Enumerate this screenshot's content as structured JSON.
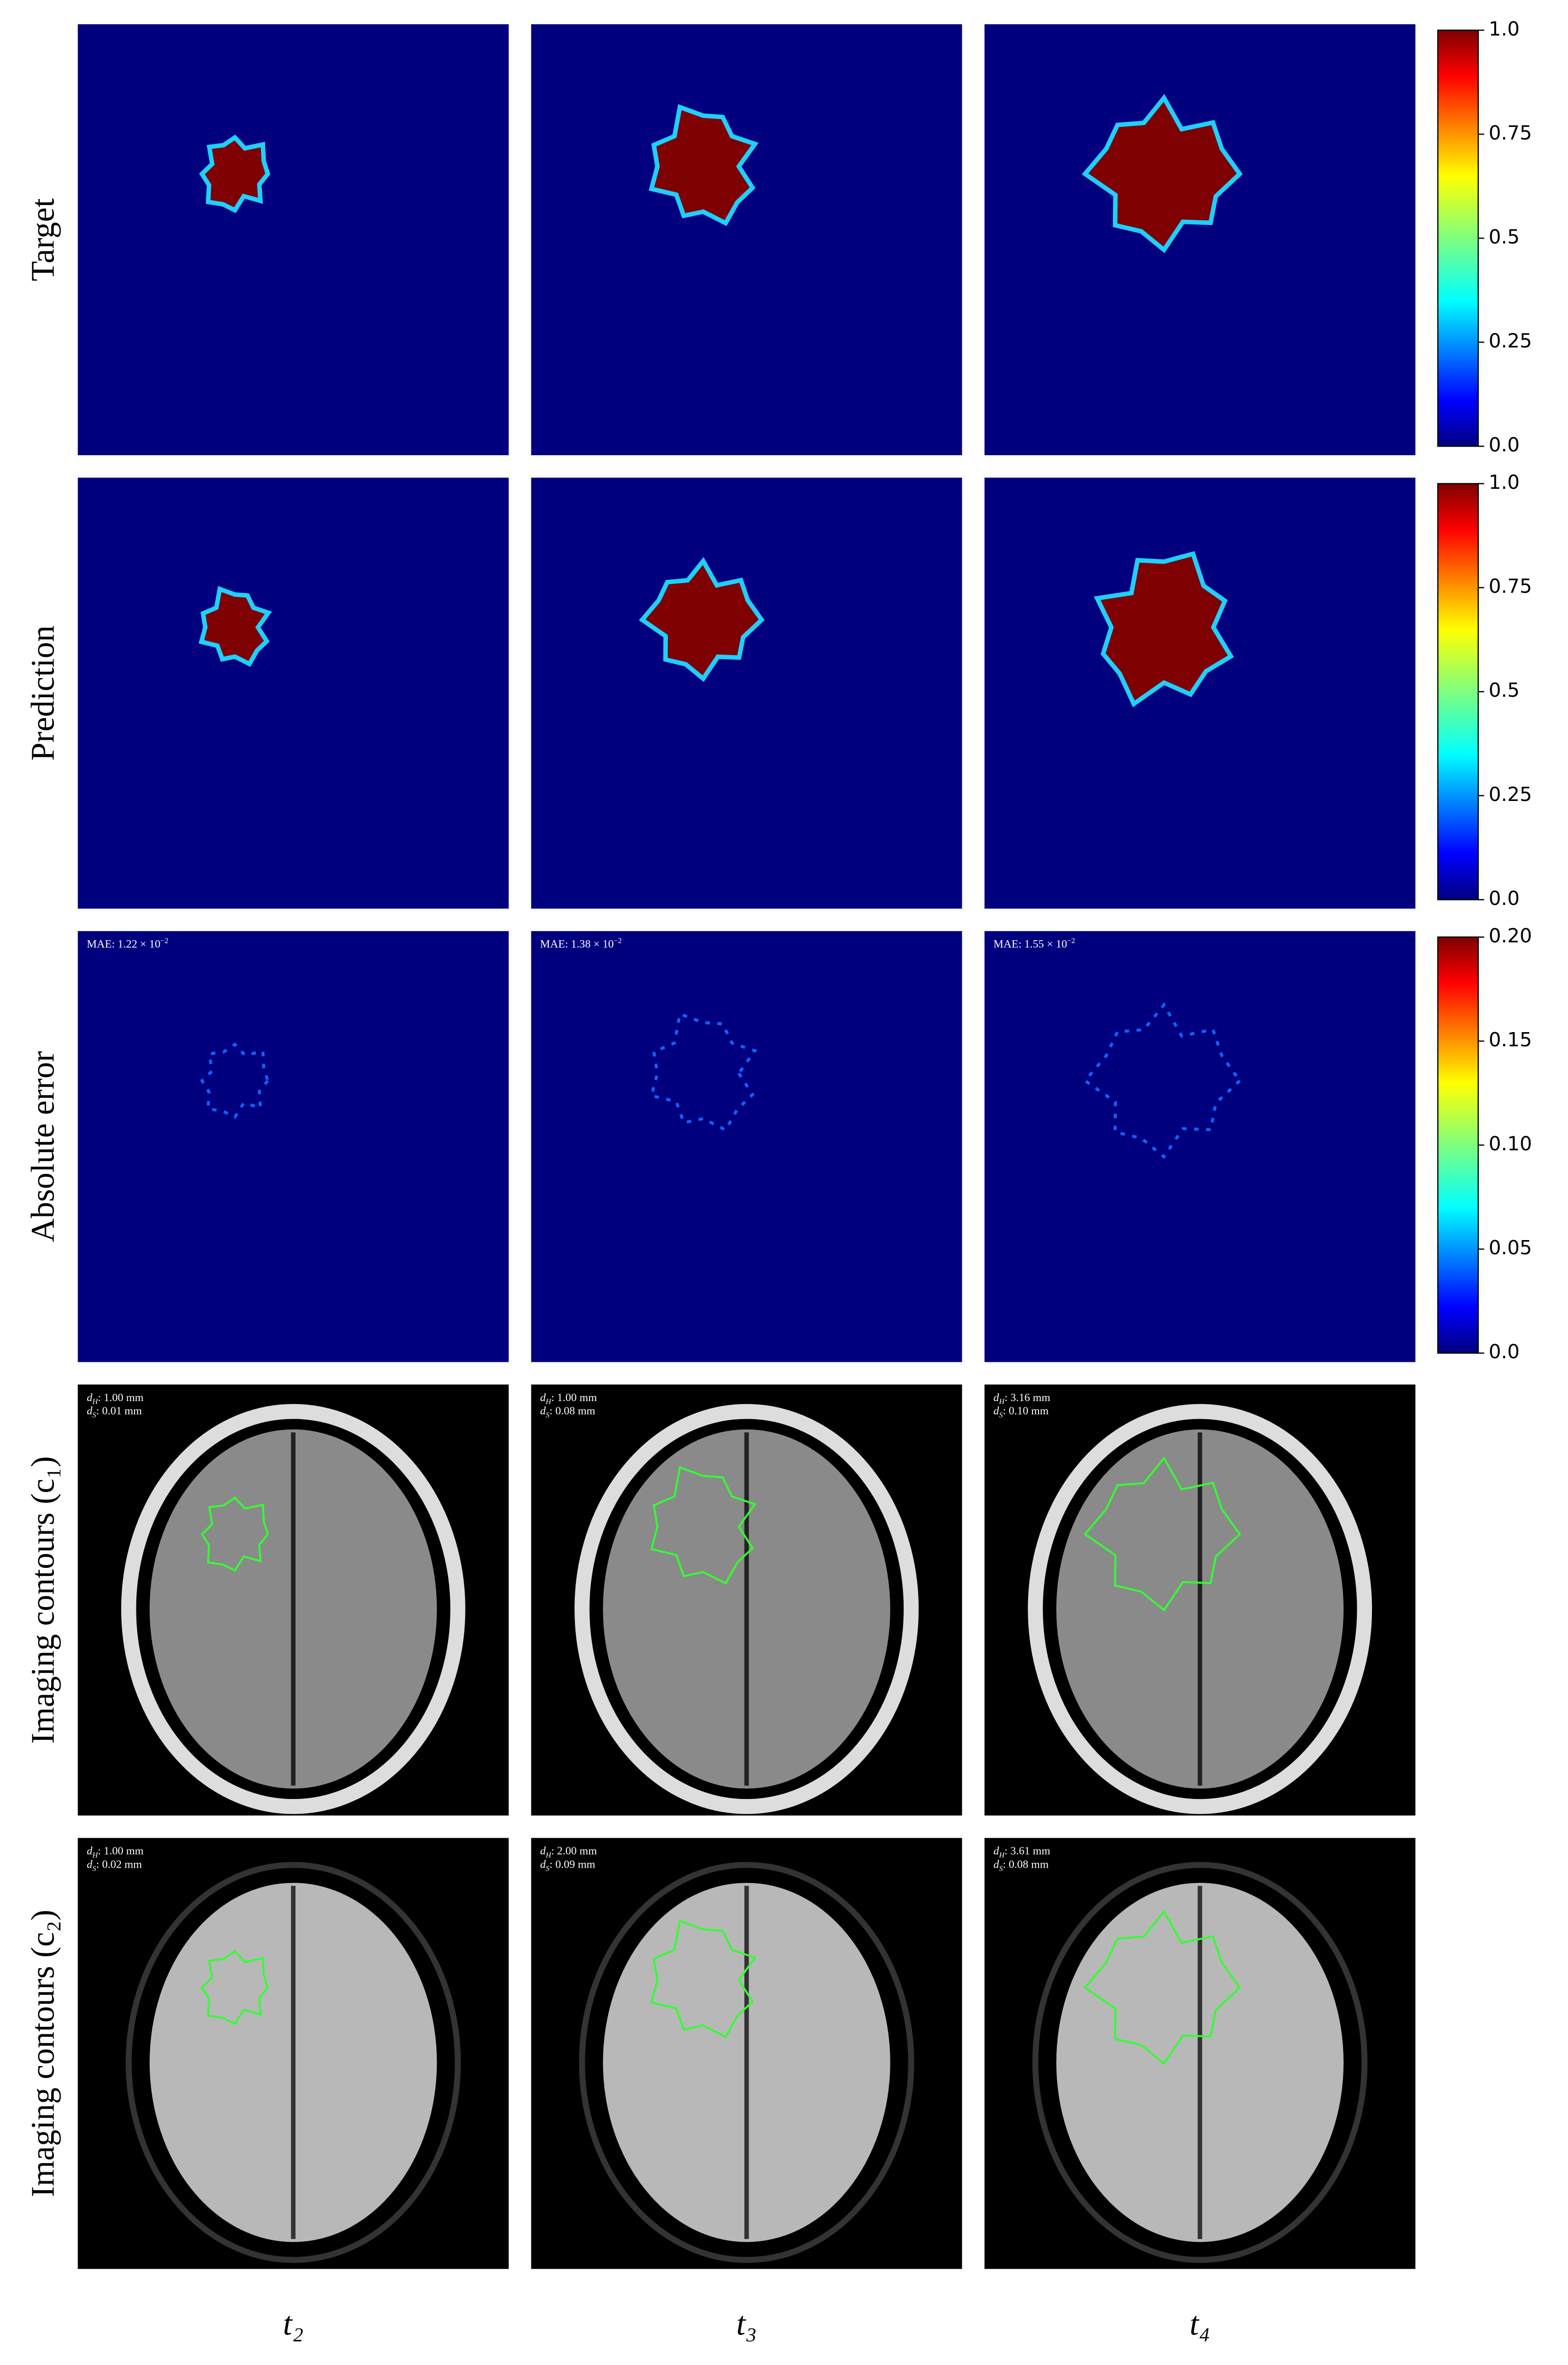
{
  "rows": [
    "Target",
    "Prediction",
    "Absolute error",
    "Imaging contours (c₁)",
    "Imaging contours (c₂)"
  ],
  "columns": [
    "t₂",
    "t₃",
    "t₄"
  ],
  "colorbars": [
    {
      "lim": [
        0,
        1
      ],
      "ticks": [
        {
          "value": 0,
          "label": "0.0"
        },
        0.25,
        0.5,
        0.75,
        {
          "value": 1,
          "label": "1.0"
        }
      ]
    },
    {
      "lim": [
        0,
        1
      ],
      "ticks": [
        {
          "value": 0,
          "label": "0.0"
        },
        0.25,
        0.5,
        0.75,
        {
          "value": 1,
          "label": "1.0"
        }
      ]
    },
    {
      "lim": [
        0,
        0.2
      ],
      "ticks": [
        {
          "value": 0,
          "label": "0.0"
        },
        0.05,
        {
          "value": 0.1,
          "label": "0.10"
        },
        0.15,
        {
          "value": 0.2,
          "label": "0.20"
        }
      ]
    }
  ],
  "mae": [
    {
      "text": "MAE: 1.22 × 10",
      "exp": "−2"
    },
    {
      "text": "MAE: 1.38 × 10",
      "exp": "−2"
    },
    {
      "text": "MAE: 1.55 × 10",
      "exp": "−2"
    }
  ],
  "contours": [
    [
      {
        "dh": ": 1.00 mm",
        "ds": ": 0.01 mm"
      },
      {
        "dh": ": 1.00 mm",
        "ds": ": 0.08 mm"
      },
      {
        "dh": ": 3.16 mm",
        "ds": ": 0.10 mm"
      }
    ],
    [
      {
        "dh": ": 1.00 mm",
        "ds": ": 0.02 mm"
      },
      {
        "dh": ": 2.00 mm",
        "ds": ": 0.09 mm"
      },
      {
        "dh": ": 3.61 mm",
        "ds": ": 0.08 mm"
      }
    ]
  ],
  "dh_symbol": "d",
  "dh_sub": "H",
  "ds_symbol": "d",
  "ds_sub": "S"
}
